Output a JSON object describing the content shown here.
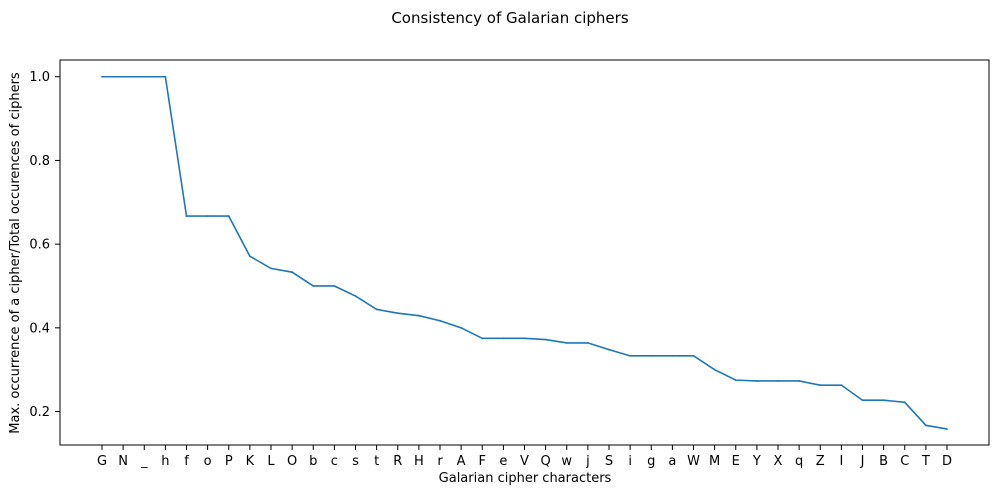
{
  "chart_data": {
    "type": "line",
    "title": "Consistency of Galarian ciphers",
    "xlabel": "Galarian cipher characters",
    "ylabel": "Max. occurrence of a cipher/Total occurences of ciphers",
    "categories": [
      "G",
      "N",
      "_",
      "h",
      "f",
      "o",
      "P",
      "K",
      "L",
      "O",
      "b",
      "c",
      "s",
      "t",
      "R",
      "H",
      "r",
      "A",
      "F",
      "e",
      "V",
      "Q",
      "w",
      "j",
      "S",
      "i",
      "g",
      "a",
      "W",
      "M",
      "E",
      "Y",
      "X",
      "q",
      "Z",
      "I",
      "J",
      "B",
      "C",
      "T",
      "D"
    ],
    "values": [
      1.0,
      1.0,
      1.0,
      1.0,
      0.667,
      0.667,
      0.667,
      0.571,
      0.542,
      0.533,
      0.5,
      0.5,
      0.476,
      0.444,
      0.435,
      0.429,
      0.417,
      0.4,
      0.375,
      0.375,
      0.375,
      0.372,
      0.364,
      0.364,
      0.348,
      0.333,
      0.333,
      0.333,
      0.333,
      0.3,
      0.275,
      0.273,
      0.273,
      0.273,
      0.263,
      0.263,
      0.227,
      0.227,
      0.222,
      0.167,
      0.158
    ],
    "yticks": [
      "0.2",
      "0.4",
      "0.6",
      "0.8",
      "1.0"
    ],
    "ylim": [
      0.12,
      1.04
    ],
    "grid": false,
    "line_color": "#1f77b4"
  }
}
